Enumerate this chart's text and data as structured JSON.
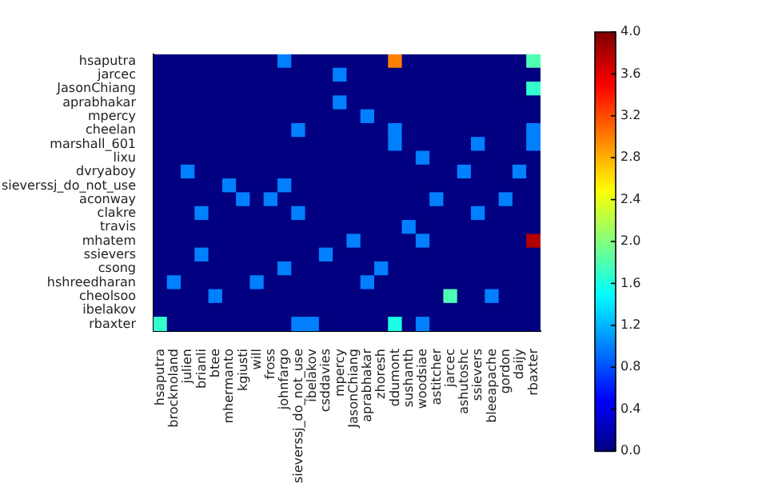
{
  "chart_data": {
    "type": "heatmap",
    "categories": [
      "hsaputra",
      "brocknoland",
      "julien",
      "brianli",
      "btee",
      "mhermanto",
      "kgiusti",
      "will",
      "fross",
      "johnfargo",
      "sieverssj_do_not_use",
      "ibelakov",
      "csddavies",
      "mpercy",
      "JasonChiang",
      "aprabhakar",
      "zhoresh",
      "ddumont",
      "sushanth",
      "woodsiae",
      "astitcher",
      "jarcec",
      "ashutoshc",
      "ssievers",
      "bleeapache",
      "gordon",
      "daijy",
      "rbaxter"
    ],
    "y_categories": [
      "hsaputra",
      "jarcec",
      "JasonChiang",
      "aprabhakar",
      "mpercy",
      "cheelan",
      "marshall_601",
      "lixu",
      "dvryaboy",
      "sieverssj_do_not_use",
      "aconway",
      "clakre",
      "travis",
      "mhatem",
      "ssievers",
      "csong",
      "hshreedharan",
      "cheolsoo",
      "ibelakov",
      "rbaxter"
    ],
    "cells": [
      [
        0,
        0,
        0,
        0,
        0,
        0,
        0,
        0,
        0,
        1.0,
        0,
        0,
        0,
        0,
        0,
        0,
        0,
        3.0,
        0,
        0,
        0,
        0,
        0,
        0,
        0,
        0,
        0,
        1.8
      ],
      [
        0,
        0,
        0,
        0,
        0,
        0,
        0,
        0,
        0,
        0,
        0,
        0,
        0,
        1.0,
        0,
        0,
        0,
        0,
        0,
        0,
        0,
        0,
        0,
        0,
        0,
        0,
        0,
        0
      ],
      [
        0,
        0,
        0,
        0,
        0,
        0,
        0,
        0,
        0,
        0,
        0,
        0,
        0,
        0,
        0,
        0,
        0,
        0,
        0,
        0,
        0,
        0,
        0,
        0,
        0,
        0,
        0,
        1.7
      ],
      [
        0,
        0,
        0,
        0,
        0,
        0,
        0,
        0,
        0,
        0,
        0,
        0,
        0,
        1.0,
        0,
        0,
        0,
        0,
        0,
        0,
        0,
        0,
        0,
        0,
        0,
        0,
        0,
        0
      ],
      [
        0,
        0,
        0,
        0,
        0,
        0,
        0,
        0,
        0,
        0,
        0,
        0,
        0,
        0,
        0,
        1.0,
        0,
        0,
        0,
        0,
        0,
        0,
        0,
        0,
        0,
        0,
        0,
        0
      ],
      [
        0,
        0,
        0,
        0,
        0,
        0,
        0,
        0,
        0,
        0,
        1.0,
        0,
        0,
        0,
        0,
        0,
        0,
        1.0,
        0,
        0,
        0,
        0,
        0,
        0,
        0,
        0,
        0,
        1.0
      ],
      [
        0,
        0,
        0,
        0,
        0,
        0,
        0,
        0,
        0,
        0,
        0,
        0,
        0,
        0,
        0,
        0,
        0,
        1.0,
        0,
        0,
        0,
        0,
        0,
        1.0,
        0,
        0,
        0,
        1.0
      ],
      [
        0,
        0,
        0,
        0,
        0,
        0,
        0,
        0,
        0,
        0,
        0,
        0,
        0,
        0,
        0,
        0,
        0,
        0,
        0,
        1.0,
        0,
        0,
        0,
        0,
        0,
        0,
        0,
        0
      ],
      [
        0,
        0,
        1.0,
        0,
        0,
        0,
        0,
        0,
        0,
        0,
        0,
        0,
        0,
        0,
        0,
        0,
        0,
        0,
        0,
        0,
        0,
        0,
        1.0,
        0,
        0,
        0,
        1.0,
        0
      ],
      [
        0,
        0,
        0,
        0,
        0,
        1.0,
        0,
        0,
        0,
        1.0,
        0,
        0,
        0,
        0,
        0,
        0,
        0,
        0,
        0,
        0,
        0,
        0,
        0,
        0,
        0,
        0,
        0,
        0
      ],
      [
        0,
        0,
        0,
        0,
        0,
        0,
        1.0,
        0,
        1.0,
        0,
        0,
        0,
        0,
        0,
        0,
        0,
        0,
        0,
        0,
        0,
        1.0,
        0,
        0,
        0,
        0,
        1.0,
        0,
        0
      ],
      [
        0,
        0,
        0,
        1.0,
        0,
        0,
        0,
        0,
        0,
        0,
        1.0,
        0,
        0,
        0,
        0,
        0,
        0,
        0,
        0,
        0,
        0,
        0,
        0,
        1.0,
        0,
        0,
        0,
        0
      ],
      [
        0,
        0,
        0,
        0,
        0,
        0,
        0,
        0,
        0,
        0,
        0,
        0,
        0,
        0,
        0,
        0,
        0,
        0,
        1.0,
        0,
        0,
        0,
        0,
        0,
        0,
        0,
        0,
        0
      ],
      [
        0,
        0,
        0,
        0,
        0,
        0,
        0,
        0,
        0,
        0,
        0,
        0,
        0,
        0,
        1.0,
        0,
        0,
        0,
        0,
        1.0,
        0,
        0,
        0,
        0,
        0,
        0,
        0,
        3.8
      ],
      [
        0,
        0,
        0,
        1.0,
        0,
        0,
        0,
        0,
        0,
        0,
        0,
        0,
        1.0,
        0,
        0,
        0,
        0,
        0,
        0,
        0,
        0,
        0,
        0,
        0,
        0,
        0,
        0,
        0
      ],
      [
        0,
        0,
        0,
        0,
        0,
        0,
        0,
        0,
        0,
        1.0,
        0,
        0,
        0,
        0,
        0,
        0,
        1.0,
        0,
        0,
        0,
        0,
        0,
        0,
        0,
        0,
        0,
        0,
        0
      ],
      [
        0,
        1.0,
        0,
        0,
        0,
        0,
        0,
        1.0,
        0,
        0,
        0,
        0,
        0,
        0,
        0,
        1.0,
        0,
        0,
        0,
        0,
        0,
        0,
        0,
        0,
        0,
        0,
        0,
        0
      ],
      [
        0,
        0,
        0,
        0,
        1.0,
        0,
        0,
        0,
        0,
        0,
        0,
        0,
        0,
        0,
        0,
        0,
        0,
        0,
        0,
        0,
        0,
        1.8,
        0,
        0,
        1.0,
        0,
        0,
        0
      ],
      [
        0,
        0,
        0,
        0,
        0,
        0,
        0,
        0,
        0,
        0,
        0,
        0,
        0,
        0,
        0,
        0,
        0,
        0,
        0,
        0,
        0,
        0,
        0,
        0,
        0,
        0,
        0,
        0
      ],
      [
        1.7,
        0,
        0,
        0,
        0,
        0,
        0,
        0,
        0,
        0,
        1.0,
        1.0,
        0,
        0,
        0,
        0,
        0,
        1.6,
        0,
        1.0,
        0,
        0,
        0,
        0,
        0,
        0,
        0,
        0
      ]
    ],
    "clim": [
      0,
      4
    ],
    "cticks": [
      {
        "value": 0,
        "label": "0.0"
      },
      {
        "value": 0.4,
        "label": "0.4"
      },
      {
        "value": 0.8,
        "label": "0.8"
      },
      {
        "value": 1.2,
        "label": "1.2"
      },
      {
        "value": 1.6,
        "label": "1.6"
      },
      {
        "value": 2.0,
        "label": "2.0"
      },
      {
        "value": 2.4,
        "label": "2.4"
      },
      {
        "value": 2.8,
        "label": "2.8"
      },
      {
        "value": 3.2,
        "label": "3.2"
      },
      {
        "value": 3.6,
        "label": "3.6"
      },
      {
        "value": 4,
        "label": "4.0"
      }
    ]
  }
}
